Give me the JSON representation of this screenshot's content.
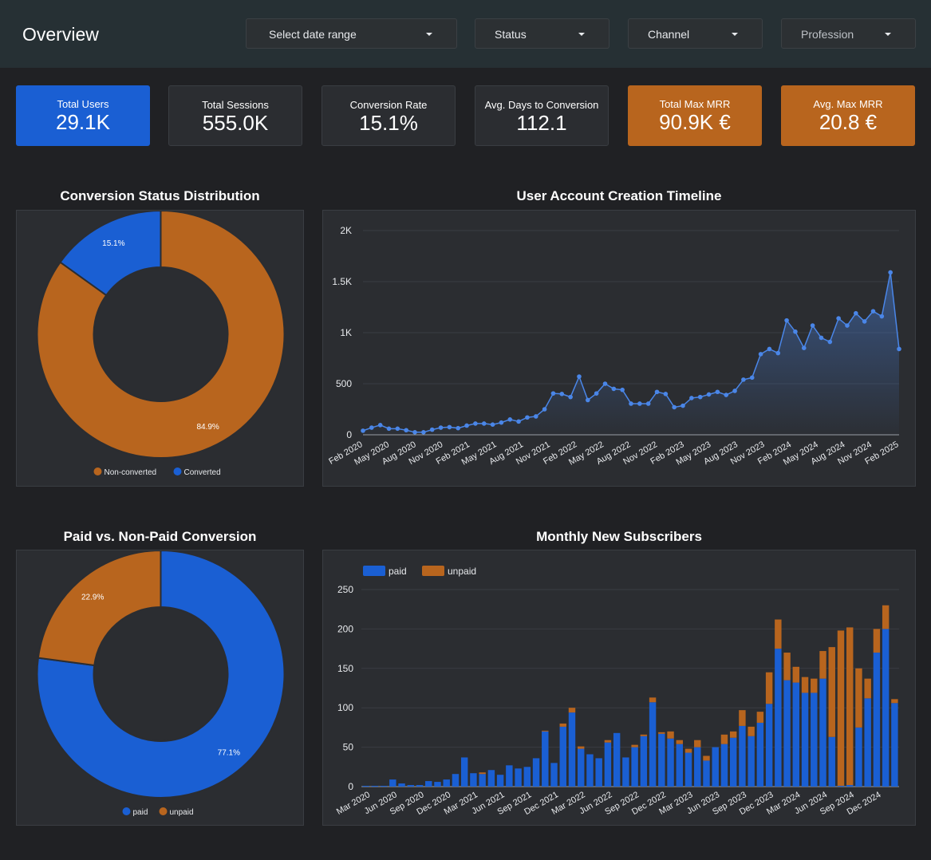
{
  "header": {
    "title": "Overview",
    "filters": [
      "Select date range",
      "Status",
      "Channel",
      "Profession"
    ]
  },
  "kpis": [
    {
      "label": "Total Users",
      "value": "29.1K"
    },
    {
      "label": "Total Sessions",
      "value": "555.0K"
    },
    {
      "label": "Conversion Rate",
      "value": "15.1%"
    },
    {
      "label": "Avg. Days to Conversion",
      "value": "112.1"
    },
    {
      "label": "Total Max MRR",
      "value": "90.9K €"
    },
    {
      "label": "Avg. Max MRR",
      "value": "20.8 €"
    }
  ],
  "colors": {
    "blue": "#1a5fd3",
    "orange": "#b8651e",
    "line": "#4a86e8"
  },
  "chart_data": [
    {
      "id": "conversion",
      "type": "pie",
      "title": "Conversion Status Distribution",
      "labels": [
        "Non-converted",
        "Converted"
      ],
      "values": [
        84.9,
        15.1
      ],
      "value_labels": [
        "84.9%",
        "15.1%"
      ],
      "colors": [
        "#b8651e",
        "#1a5fd3"
      ],
      "legend": "bottom"
    },
    {
      "id": "timeline",
      "type": "area",
      "title": "User Account Creation Timeline",
      "ylim": [
        0,
        2000
      ],
      "yticks": [
        0,
        500,
        1000,
        1500,
        2000
      ],
      "ytick_labels": [
        "0",
        "500",
        "1K",
        "1.5K",
        "2K"
      ],
      "xtick_labels": [
        "Feb 2020",
        "May 2020",
        "Aug 2020",
        "Nov 2020",
        "Feb 2021",
        "May 2021",
        "Aug 2021",
        "Nov 2021",
        "Feb 2022",
        "May 2022",
        "Aug 2022",
        "Nov 2022",
        "Feb 2023",
        "May 2023",
        "Aug 2023",
        "Nov 2023",
        "Feb 2024",
        "May 2024",
        "Aug 2024",
        "Nov 2024",
        "Feb 2025"
      ],
      "values": [
        40,
        70,
        95,
        60,
        60,
        45,
        25,
        25,
        50,
        70,
        75,
        65,
        90,
        110,
        110,
        100,
        120,
        150,
        130,
        170,
        180,
        250,
        405,
        400,
        370,
        570,
        340,
        405,
        500,
        450,
        440,
        305,
        305,
        305,
        420,
        400,
        270,
        285,
        360,
        370,
        395,
        420,
        390,
        430,
        540,
        560,
        790,
        840,
        800,
        1120,
        1010,
        850,
        1070,
        950,
        910,
        1140,
        1070,
        1190,
        1110,
        1210,
        1160,
        1590,
        840
      ]
    },
    {
      "id": "paid",
      "type": "pie",
      "title": "Paid vs. Non-Paid Conversion",
      "labels": [
        "paid",
        "unpaid"
      ],
      "values": [
        77.1,
        22.9
      ],
      "value_labels": [
        "77.1%",
        "22.9%"
      ],
      "colors": [
        "#1a5fd3",
        "#b8651e"
      ],
      "legend": "bottom"
    },
    {
      "id": "subscribers",
      "type": "bar",
      "stacked": true,
      "title": "Monthly New Subscribers",
      "ylim": [
        0,
        250
      ],
      "yticks": [
        0,
        50,
        100,
        150,
        200,
        250
      ],
      "xtick_labels": [
        "Mar 2020",
        "Jun 2020",
        "Sep 2020",
        "Dec 2020",
        "Mar 2021",
        "Jun 2021",
        "Sep 2021",
        "Dec 2021",
        "Mar 2022",
        "Jun 2022",
        "Sep 2022",
        "Dec 2022",
        "Mar 2023",
        "Jun 2023",
        "Sep 2023",
        "Dec 2023",
        "Mar 2024",
        "Jun 2024",
        "Sep 2024",
        "Dec 2024"
      ],
      "series": [
        {
          "name": "paid",
          "color": "#1a5fd3",
          "values": [
            1,
            1,
            1,
            9,
            4,
            2,
            2,
            7,
            6,
            9,
            16,
            37,
            17,
            16,
            21,
            15,
            27,
            23,
            25,
            36,
            70,
            30,
            76,
            94,
            48,
            41,
            36,
            56,
            68,
            37,
            50,
            64,
            107,
            67,
            61,
            54,
            43,
            50,
            33,
            50,
            54,
            62,
            77,
            64,
            81,
            105,
            175,
            135,
            132,
            119,
            119,
            137,
            63,
            1,
            2,
            75,
            112,
            170,
            200,
            106
          ]
        },
        {
          "name": "unpaid",
          "color": "#b8651e",
          "values": [
            0,
            0,
            0,
            0,
            0,
            0,
            0,
            0,
            0,
            0,
            0,
            0,
            0,
            2,
            0,
            0,
            0,
            0,
            0,
            0,
            1,
            0,
            4,
            6,
            3,
            0,
            0,
            3,
            0,
            0,
            3,
            2,
            6,
            2,
            9,
            5,
            5,
            9,
            6,
            0,
            12,
            8,
            20,
            12,
            14,
            40,
            37,
            35,
            20,
            20,
            18,
            35,
            114,
            197,
            200,
            75,
            25,
            30,
            30,
            5
          ]
        }
      ],
      "legend": "top-left"
    }
  ]
}
